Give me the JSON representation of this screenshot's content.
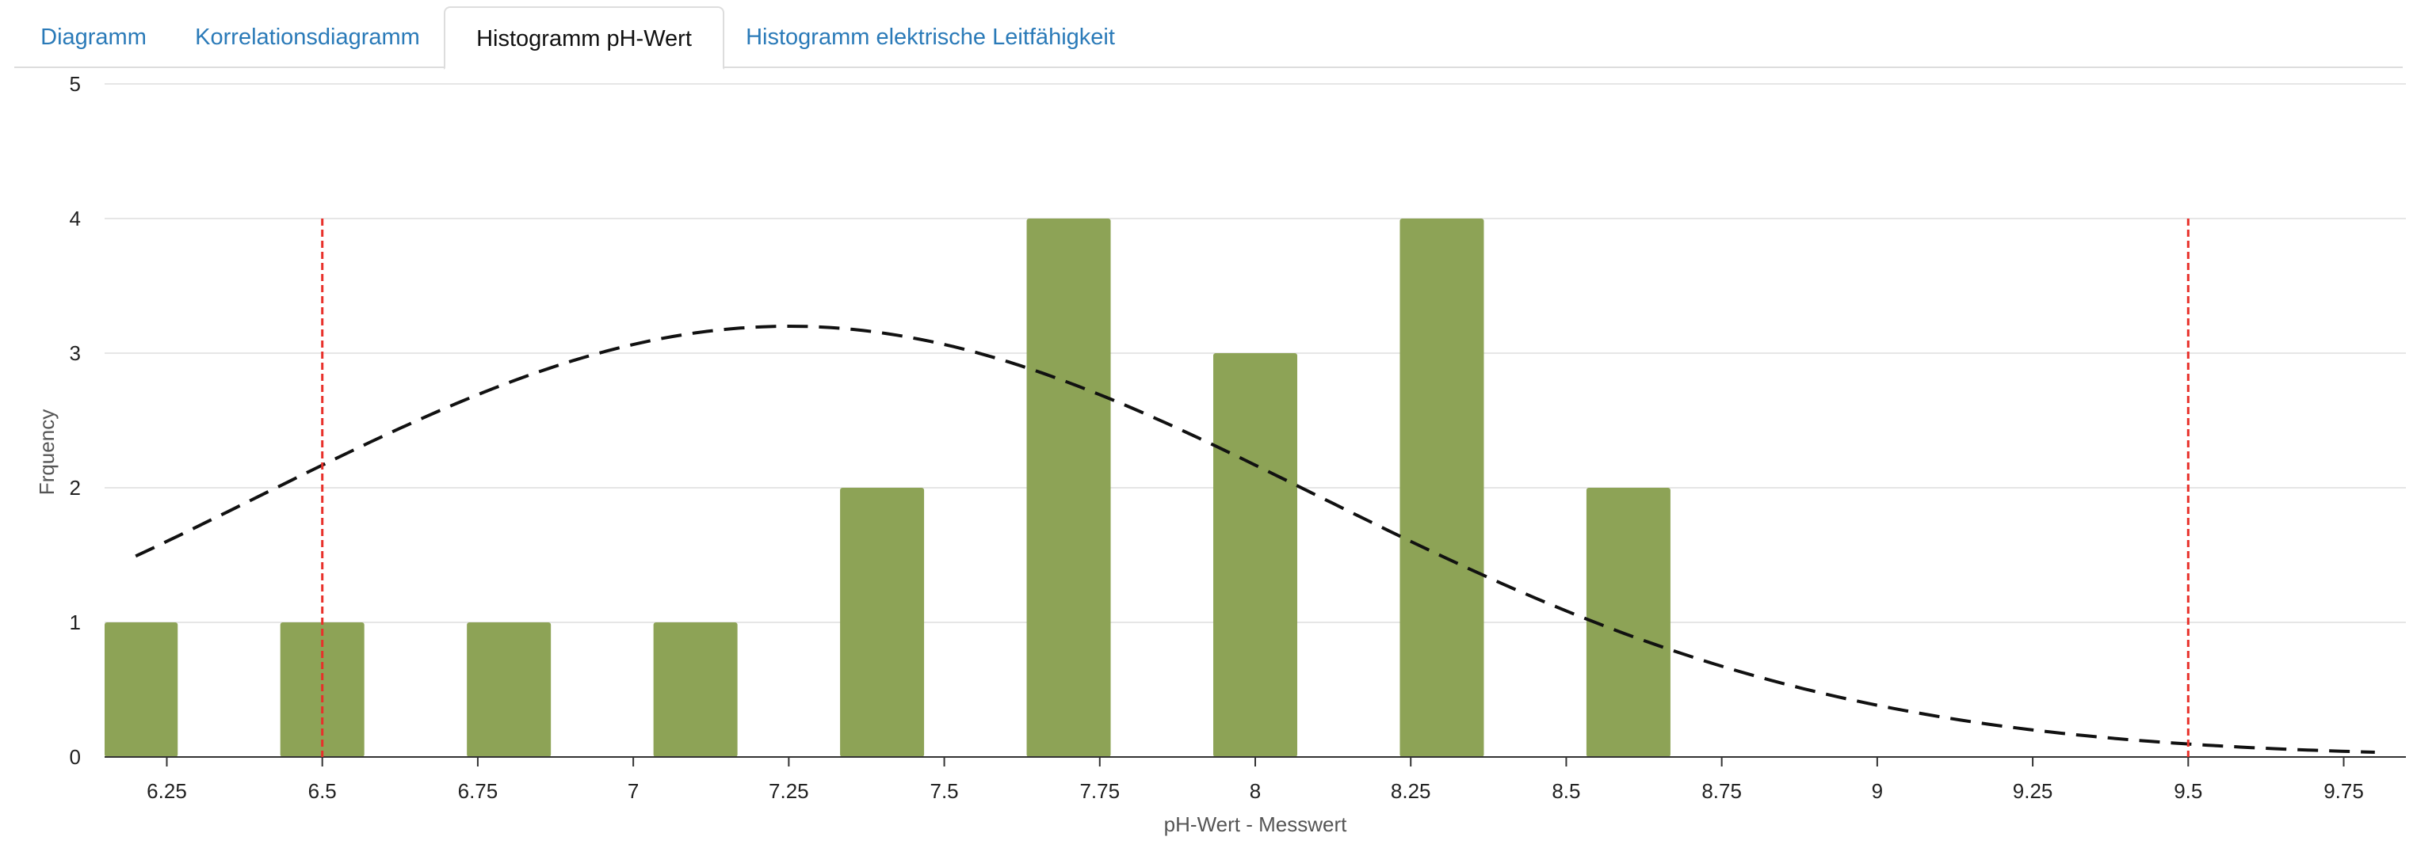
{
  "tabs": [
    {
      "label": "Diagramm",
      "active": false
    },
    {
      "label": "Korrelationsdiagramm",
      "active": false
    },
    {
      "label": "Histogramm pH-Wert",
      "active": true
    },
    {
      "label": "Histogramm elektrische Leitfähigkeit",
      "active": false
    }
  ],
  "colors": {
    "bar": "#8da356",
    "limit_line": "#e8302a",
    "curve": "#111111",
    "grid": "#e6e6e6",
    "axis": "#333333",
    "tab_link": "#2a7ab8"
  },
  "chart_data": {
    "type": "bar",
    "xlabel": "pH-Wert - Messwert",
    "ylabel": "Frquency",
    "xlim": [
      6.15,
      9.85
    ],
    "ylim": [
      0,
      5
    ],
    "x_ticks": [
      "6.25",
      "6.5",
      "6.75",
      "7",
      "7.25",
      "7.5",
      "7.75",
      "8",
      "8.25",
      "8.5",
      "8.75",
      "9",
      "9.25",
      "9.5",
      "9.75"
    ],
    "y_ticks": [
      "0",
      "1",
      "2",
      "3",
      "4",
      "5"
    ],
    "grid": true,
    "bars": [
      {
        "x": 6.2,
        "value": 1
      },
      {
        "x": 6.5,
        "value": 1
      },
      {
        "x": 6.8,
        "value": 1
      },
      {
        "x": 7.1,
        "value": 1
      },
      {
        "x": 7.4,
        "value": 2
      },
      {
        "x": 7.7,
        "value": 4
      },
      {
        "x": 8.0,
        "value": 3
      },
      {
        "x": 8.3,
        "value": 4
      },
      {
        "x": 8.6,
        "value": 2
      }
    ],
    "limit_lines": [
      6.5,
      9.5
    ],
    "normal_curve": {
      "mean": 7.25,
      "sd": 0.85,
      "peak": 3.2,
      "x_range": [
        6.2,
        9.8
      ]
    }
  }
}
